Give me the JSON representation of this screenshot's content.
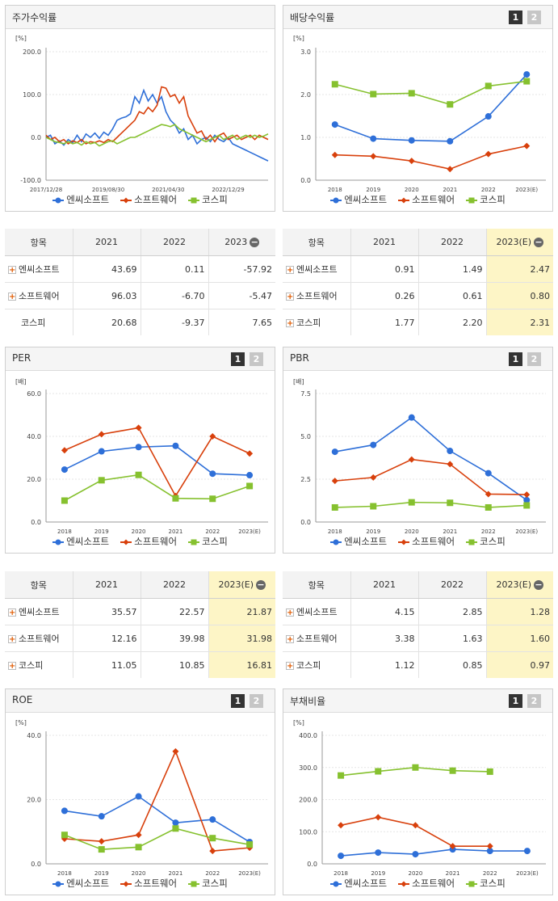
{
  "legend_names": [
    "엔씨소프트",
    "소프트웨어",
    "코스피"
  ],
  "colors": [
    "#2e6fd8",
    "#d8400c",
    "#86c12f"
  ],
  "buttons": [
    "1",
    "2"
  ],
  "table_header_label": "항목",
  "stock_chart": {
    "title": "주가수익률",
    "unit": "[%]",
    "chart_data": {
      "type": "line",
      "y_ticks": [
        "200.0",
        "100.0",
        "0.0",
        "-100.0"
      ],
      "ylim": [
        -100,
        200
      ],
      "x_ticks": [
        "2017/12/28",
        "2019/08/30",
        "2021/04/30",
        "2022/12/29"
      ],
      "xlim": [
        0,
        100
      ],
      "series": [
        {
          "name": "엔씨소프트",
          "x": [
            0,
            2,
            4,
            6,
            8,
            10,
            12,
            14,
            16,
            18,
            20,
            22,
            24,
            26,
            28,
            30,
            32,
            34,
            36,
            38,
            40,
            42,
            44,
            46,
            48,
            50,
            52,
            54,
            56,
            58,
            60,
            62,
            64,
            66,
            68,
            70,
            72,
            74,
            76,
            78,
            80,
            82,
            84,
            86,
            88,
            90,
            92,
            94,
            96,
            98,
            100
          ],
          "y": [
            0,
            5,
            -15,
            -8,
            -18,
            -5,
            -12,
            5,
            -10,
            8,
            0,
            10,
            -2,
            12,
            5,
            20,
            40,
            45,
            48,
            55,
            95,
            80,
            110,
            85,
            100,
            80,
            95,
            60,
            40,
            30,
            10,
            20,
            -5,
            5,
            -15,
            -5,
            0,
            -10,
            5,
            -5,
            -10,
            0,
            -15,
            -20,
            -25,
            -30,
            -35,
            -40,
            -45,
            -50,
            -55
          ]
        },
        {
          "name": "소프트웨어",
          "x": [
            0,
            2,
            4,
            6,
            8,
            10,
            12,
            14,
            16,
            18,
            20,
            22,
            24,
            26,
            28,
            30,
            32,
            34,
            36,
            38,
            40,
            42,
            44,
            46,
            48,
            50,
            52,
            54,
            56,
            58,
            60,
            62,
            64,
            66,
            68,
            70,
            72,
            74,
            76,
            78,
            80,
            82,
            84,
            86,
            88,
            90,
            92,
            94,
            96,
            98,
            100
          ],
          "y": [
            5,
            -5,
            0,
            -10,
            -5,
            -15,
            -8,
            -12,
            -5,
            -15,
            -10,
            -12,
            -8,
            -12,
            -5,
            -10,
            0,
            10,
            20,
            30,
            40,
            60,
            55,
            70,
            60,
            75,
            118,
            115,
            95,
            100,
            80,
            95,
            50,
            30,
            10,
            15,
            -5,
            5,
            -10,
            5,
            10,
            -5,
            0,
            5,
            -5,
            0,
            5,
            -5,
            5,
            0,
            -5
          ]
        },
        {
          "name": "코스피",
          "x": [
            0,
            2,
            4,
            6,
            8,
            10,
            12,
            14,
            16,
            18,
            20,
            22,
            24,
            26,
            28,
            30,
            32,
            34,
            36,
            38,
            40,
            42,
            44,
            46,
            48,
            50,
            52,
            54,
            56,
            58,
            60,
            62,
            64,
            66,
            68,
            70,
            72,
            74,
            76,
            78,
            80,
            82,
            84,
            86,
            88,
            90,
            92,
            94,
            96,
            98,
            100
          ],
          "y": [
            0,
            -5,
            -10,
            -12,
            -15,
            -10,
            -15,
            -12,
            -18,
            -10,
            -15,
            -12,
            -20,
            -15,
            -10,
            -8,
            -15,
            -10,
            -5,
            0,
            0,
            5,
            10,
            15,
            20,
            25,
            30,
            28,
            25,
            30,
            20,
            15,
            10,
            5,
            0,
            -5,
            -10,
            -5,
            0,
            5,
            -5,
            0,
            5,
            -5,
            0,
            5,
            0,
            5,
            0,
            3,
            8
          ]
        }
      ]
    }
  },
  "dividend_chart": {
    "title": "배당수익률",
    "unit": "[%]",
    "chart_data": {
      "type": "line",
      "categories": [
        "2018",
        "2019",
        "2020",
        "2021",
        "2022",
        "2023(E)"
      ],
      "y_ticks": [
        "3.0",
        "2.0",
        "1.0",
        "0.0"
      ],
      "ylim": [
        0,
        3
      ],
      "series": [
        {
          "name": "엔씨소프트",
          "values": [
            1.3,
            0.97,
            0.93,
            0.91,
            1.49,
            2.47
          ]
        },
        {
          "name": "소프트웨어",
          "values": [
            0.59,
            0.56,
            0.45,
            0.26,
            0.61,
            0.8
          ]
        },
        {
          "name": "코스피",
          "values": [
            2.24,
            2.01,
            2.03,
            1.77,
            2.2,
            2.31
          ]
        }
      ]
    }
  },
  "stock_table": {
    "columns": [
      "2021",
      "2022",
      "2023"
    ],
    "rows": [
      {
        "name": "엔씨소프트",
        "values": [
          "43.69",
          "0.11",
          "-57.92"
        ]
      },
      {
        "name": "소프트웨어",
        "values": [
          "96.03",
          "-6.70",
          "-5.47"
        ]
      },
      {
        "name": "코스피",
        "values": [
          "20.68",
          "-9.37",
          "7.65"
        ]
      }
    ]
  },
  "dividend_table": {
    "columns": [
      "2021",
      "2022",
      "2023(E)"
    ],
    "rows": [
      {
        "name": "엔씨소프트",
        "values": [
          "0.91",
          "1.49",
          "2.47"
        ]
      },
      {
        "name": "소프트웨어",
        "values": [
          "0.26",
          "0.61",
          "0.80"
        ]
      },
      {
        "name": "코스피",
        "values": [
          "1.77",
          "2.20",
          "2.31"
        ]
      }
    ]
  },
  "per_chart": {
    "title": "PER",
    "unit": "[배]",
    "chart_data": {
      "type": "line",
      "categories": [
        "2018",
        "2019",
        "2020",
        "2021",
        "2022",
        "2023(E)"
      ],
      "y_ticks": [
        "60.0",
        "40.0",
        "20.0",
        "0.0"
      ],
      "ylim": [
        0,
        60
      ],
      "series": [
        {
          "name": "엔씨소프트",
          "values": [
            24.5,
            33.0,
            35.0,
            35.57,
            22.57,
            21.87
          ]
        },
        {
          "name": "소프트웨어",
          "values": [
            33.5,
            41.0,
            44.0,
            12.16,
            39.98,
            31.98
          ]
        },
        {
          "name": "코스피",
          "values": [
            10.0,
            19.5,
            22.0,
            11.05,
            10.85,
            16.81
          ]
        }
      ]
    }
  },
  "pbr_chart": {
    "title": "PBR",
    "unit": "[배]",
    "chart_data": {
      "type": "line",
      "categories": [
        "2018",
        "2019",
        "2020",
        "2021",
        "2022",
        "2023(E)"
      ],
      "y_ticks": [
        "7.5",
        "5.0",
        "2.5",
        "0.0"
      ],
      "ylim": [
        0,
        7.5
      ],
      "series": [
        {
          "name": "엔씨소프트",
          "values": [
            4.1,
            4.5,
            6.1,
            4.15,
            2.85,
            1.28
          ]
        },
        {
          "name": "소프트웨어",
          "values": [
            2.4,
            2.6,
            3.65,
            3.38,
            1.63,
            1.6
          ]
        },
        {
          "name": "코스피",
          "values": [
            0.85,
            0.92,
            1.15,
            1.12,
            0.85,
            0.97
          ]
        }
      ]
    }
  },
  "per_table": {
    "columns": [
      "2021",
      "2022",
      "2023(E)"
    ],
    "rows": [
      {
        "name": "엔씨소프트",
        "values": [
          "35.57",
          "22.57",
          "21.87"
        ]
      },
      {
        "name": "소프트웨어",
        "values": [
          "12.16",
          "39.98",
          "31.98"
        ]
      },
      {
        "name": "코스피",
        "values": [
          "11.05",
          "10.85",
          "16.81"
        ]
      }
    ]
  },
  "pbr_table": {
    "columns": [
      "2021",
      "2022",
      "2023(E)"
    ],
    "rows": [
      {
        "name": "엔씨소프트",
        "values": [
          "4.15",
          "2.85",
          "1.28"
        ]
      },
      {
        "name": "소프트웨어",
        "values": [
          "3.38",
          "1.63",
          "1.60"
        ]
      },
      {
        "name": "코스피",
        "values": [
          "1.12",
          "0.85",
          "0.97"
        ]
      }
    ]
  },
  "roe_chart": {
    "title": "ROE",
    "unit": "[%]",
    "chart_data": {
      "type": "line",
      "categories": [
        "2018",
        "2019",
        "2020",
        "2021",
        "2022",
        "2023(E)"
      ],
      "y_ticks": [
        "40.0",
        "20.0",
        "0.0"
      ],
      "ylim": [
        0,
        40
      ],
      "series": [
        {
          "name": "엔씨소프트",
          "values": [
            16.5,
            14.8,
            21.0,
            12.8,
            13.8,
            6.8
          ]
        },
        {
          "name": "소프트웨어",
          "values": [
            7.8,
            7.0,
            9.0,
            35.0,
            4.0,
            5.0
          ]
        },
        {
          "name": "코스피",
          "values": [
            9.0,
            4.5,
            5.2,
            11.0,
            8.0,
            6.0
          ]
        }
      ]
    }
  },
  "debt_chart": {
    "title": "부채비율",
    "unit": "[%]",
    "chart_data": {
      "type": "line",
      "categories": [
        "2018",
        "2019",
        "2020",
        "2021",
        "2022",
        "2023(E)"
      ],
      "y_ticks": [
        "400.0",
        "300.0",
        "200.0",
        "100.0",
        "0.0"
      ],
      "ylim": [
        0,
        400
      ],
      "series": [
        {
          "name": "엔씨소프트",
          "values": [
            25,
            35,
            30,
            45,
            40,
            40
          ]
        },
        {
          "name": "소프트웨어",
          "values": [
            120,
            145,
            120,
            55,
            55,
            null
          ]
        },
        {
          "name": "코스피",
          "values": [
            275,
            288,
            300,
            290,
            287,
            null
          ]
        }
      ]
    }
  }
}
